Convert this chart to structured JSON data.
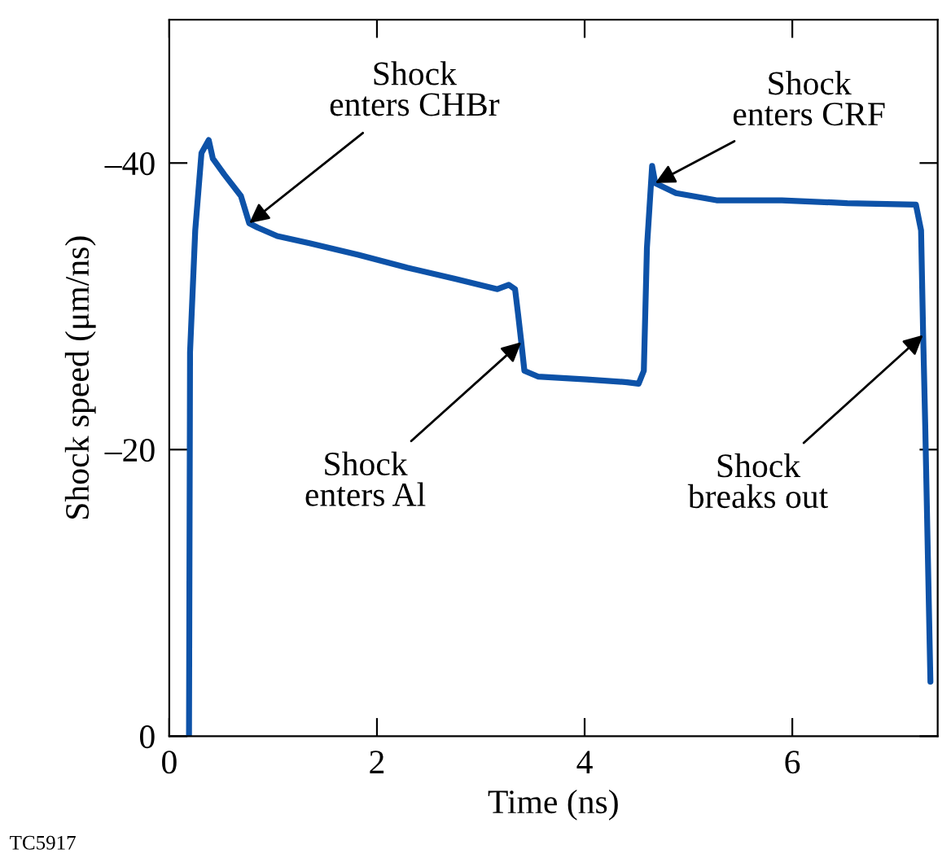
{
  "chart_data": {
    "type": "line",
    "xlabel": "Time (ns)",
    "ylabel": "Shock speed (μm/ns)",
    "xlim": [
      0,
      7.4
    ],
    "ylim": [
      0,
      -50
    ],
    "xticks": [
      0,
      2,
      4,
      6
    ],
    "yticks": [
      0,
      {
        "value": -20,
        "label": "–20"
      },
      {
        "value": -40,
        "label": "–40"
      }
    ],
    "grid": false,
    "marker": "none",
    "line_style": "solid",
    "series": [
      {
        "color": "#0d52a8",
        "x": [
          0.19,
          0.2,
          0.25,
          0.31,
          0.38,
          0.42,
          0.53,
          0.69,
          0.77,
          0.85,
          1.04,
          1.35,
          1.82,
          2.29,
          2.76,
          3.16,
          3.27,
          3.33,
          3.36,
          3.39,
          3.42,
          3.55,
          4.02,
          4.41,
          4.52,
          4.57,
          4.6,
          4.65,
          4.68,
          4.88,
          5.27,
          5.9,
          6.53,
          7.19,
          7.24,
          7.26,
          7.28,
          7.33
        ],
        "values": [
          0,
          -26.8,
          -35.3,
          -40.7,
          -41.6,
          -40.3,
          -39.2,
          -37.7,
          -35.8,
          -35.5,
          -34.9,
          -34.4,
          -33.6,
          -32.7,
          -31.9,
          -31.2,
          -31.5,
          -31.2,
          -29.4,
          -27.5,
          -25.5,
          -25.1,
          -24.9,
          -24.7,
          -24.6,
          -25.5,
          -34.1,
          -39.8,
          -38.6,
          -37.9,
          -37.4,
          -37.4,
          -37.2,
          -37.1,
          -35.3,
          -28,
          -21.7,
          -3.8
        ]
      }
    ],
    "annotations": [
      {
        "text": "Shock\nenters CHBr",
        "x": 0.77,
        "y": -35.8
      },
      {
        "text": "Shock\nenters Al",
        "x": 3.39,
        "y": -27.5
      },
      {
        "text": "Shock\nenters CRF",
        "x": 4.68,
        "y": -38.6
      },
      {
        "text": "Shock\nbreaks out",
        "x": 7.26,
        "y": -28
      },
      "TC5917"
    ]
  }
}
